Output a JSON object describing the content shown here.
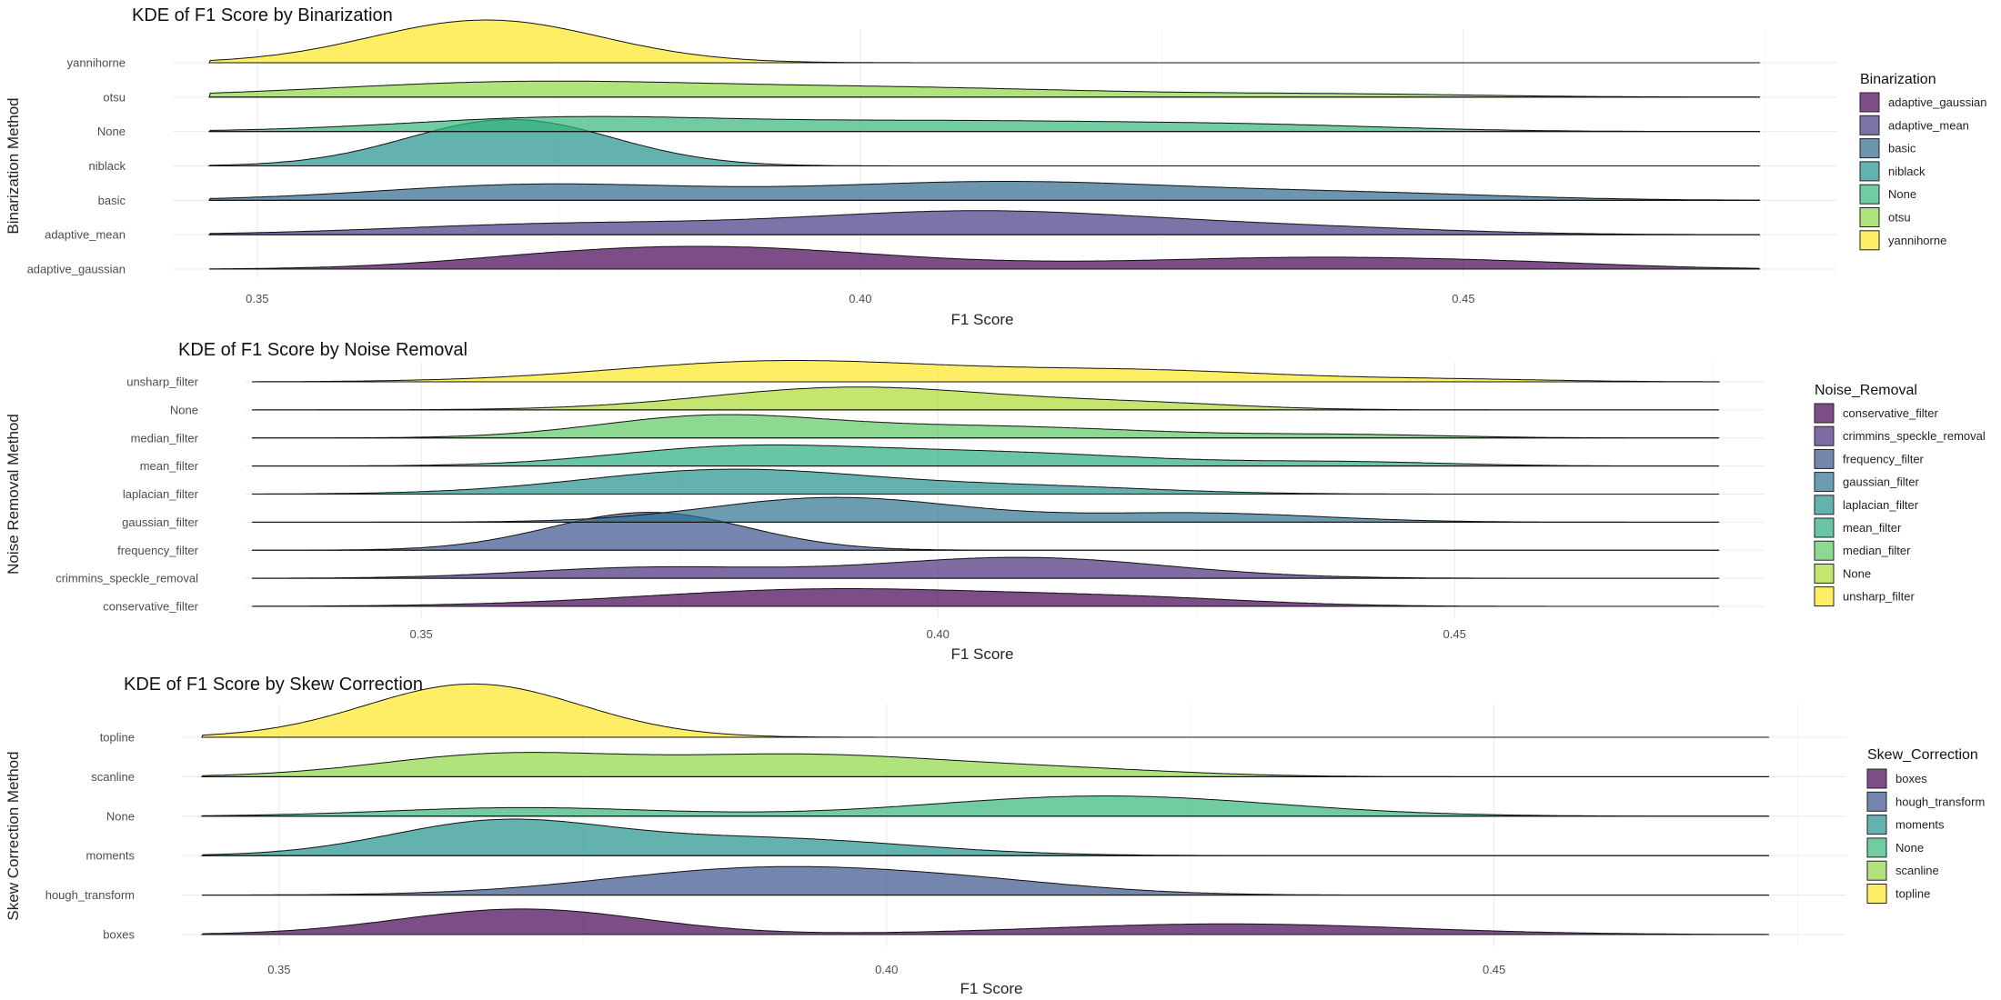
{
  "chart_data": [
    {
      "type": "area",
      "subtype": "ridgeline-kde",
      "title": "KDE of F1 Score by Binarization",
      "xlabel": "F1 Score",
      "ylabel": "Binarization Method",
      "xlim": [
        0.343,
        0.481
      ],
      "x_ticks": [
        "0.35",
        "0.40",
        "0.45"
      ],
      "grid": true,
      "legend": {
        "title": "Binarization",
        "position": "right"
      },
      "categories": [
        "adaptive_gaussian",
        "adaptive_mean",
        "basic",
        "niblack",
        "None",
        "otsu",
        "yannihorne"
      ],
      "colors": [
        "#440154",
        "#443983",
        "#31688e",
        "#21918c",
        "#35b779",
        "#90d743",
        "#fde725"
      ],
      "series": [
        {
          "name": "adaptive_gaussian",
          "peaks": [
            [
              0.377,
              0.011,
              0.28
            ],
            [
              0.392,
              0.011,
              0.32
            ],
            [
              0.412,
              0.013,
              0.1
            ],
            [
              0.437,
              0.012,
              0.22
            ],
            [
              0.455,
              0.01,
              0.1
            ]
          ]
        },
        {
          "name": "adaptive_mean",
          "peaks": [
            [
              0.375,
              0.014,
              0.22
            ],
            [
              0.41,
              0.015,
              0.5
            ],
            [
              0.438,
              0.012,
              0.12
            ]
          ]
        },
        {
          "name": "basic",
          "peaks": [
            [
              0.373,
              0.013,
              0.33
            ],
            [
              0.412,
              0.016,
              0.4
            ],
            [
              0.443,
              0.012,
              0.12
            ]
          ]
        },
        {
          "name": "niblack",
          "peaks": [
            [
              0.371,
              0.0085,
              1.0
            ]
          ]
        },
        {
          "name": "None",
          "peaks": [
            [
              0.375,
              0.013,
              0.28
            ],
            [
              0.407,
              0.017,
              0.22
            ],
            [
              0.434,
              0.012,
              0.1
            ]
          ]
        },
        {
          "name": "otsu",
          "peaks": [
            [
              0.372,
              0.016,
              0.32
            ],
            [
              0.405,
              0.016,
              0.18
            ],
            [
              0.44,
              0.012,
              0.06
            ]
          ]
        },
        {
          "name": "yannihorne",
          "peaks": [
            [
              0.369,
              0.0095,
              0.92
            ]
          ]
        }
      ]
    },
    {
      "type": "area",
      "subtype": "ridgeline-kde",
      "title": "KDE of F1 Score by Noise Removal",
      "xlabel": "F1 Score",
      "ylabel": "Noise Removal Method",
      "xlim": [
        0.333,
        0.48
      ],
      "x_ticks": [
        "0.35",
        "0.40",
        "0.45"
      ],
      "grid": true,
      "legend": {
        "title": "Noise_Removal",
        "position": "right"
      },
      "categories": [
        "conservative_filter",
        "crimmins_speckle_removal",
        "frequency_filter",
        "gaussian_filter",
        "laplacian_filter",
        "mean_filter",
        "median_filter",
        "None",
        "unsharp_filter"
      ],
      "colors": [
        "#440154",
        "#472d7b",
        "#3b528b",
        "#2c728e",
        "#21918c",
        "#28ae80",
        "#5ec962",
        "#addc30",
        "#fde725"
      ],
      "series": [
        {
          "name": "conservative_filter",
          "peaks": [
            [
              0.39,
              0.018,
              0.46
            ],
            [
              0.42,
              0.012,
              0.16
            ]
          ]
        },
        {
          "name": "crimmins_speckle_removal",
          "peaks": [
            [
              0.372,
              0.012,
              0.28
            ],
            [
              0.408,
              0.014,
              0.55
            ]
          ]
        },
        {
          "name": "frequency_filter",
          "peaks": [
            [
              0.372,
              0.0095,
              1.0
            ]
          ]
        },
        {
          "name": "gaussian_filter",
          "peaks": [
            [
              0.39,
              0.012,
              0.65
            ],
            [
              0.425,
              0.012,
              0.24
            ]
          ]
        },
        {
          "name": "laplacian_filter",
          "peaks": [
            [
              0.38,
              0.014,
              0.65
            ],
            [
              0.41,
              0.012,
              0.18
            ]
          ]
        },
        {
          "name": "mean_filter",
          "peaks": [
            [
              0.38,
              0.012,
              0.45
            ],
            [
              0.405,
              0.015,
              0.35
            ],
            [
              0.44,
              0.01,
              0.1
            ]
          ]
        },
        {
          "name": "median_filter",
          "peaks": [
            [
              0.378,
              0.011,
              0.55
            ],
            [
              0.405,
              0.015,
              0.3
            ],
            [
              0.44,
              0.01,
              0.08
            ]
          ]
        },
        {
          "name": "None",
          "peaks": [
            [
              0.392,
              0.014,
              0.6
            ],
            [
              0.42,
              0.01,
              0.15
            ]
          ]
        },
        {
          "name": "unsharp_filter",
          "peaks": [
            [
              0.385,
              0.016,
              0.55
            ],
            [
              0.42,
              0.014,
              0.28
            ],
            [
              0.45,
              0.01,
              0.06
            ]
          ]
        }
      ]
    },
    {
      "type": "area",
      "subtype": "ridgeline-kde",
      "title": "KDE of F1 Score by Skew Correction",
      "xlabel": "F1 Score",
      "ylabel": "Skew Correction Method",
      "xlim": [
        0.342,
        0.479
      ],
      "x_ticks": [
        "0.35",
        "0.40",
        "0.45"
      ],
      "grid": true,
      "legend": {
        "title": "Skew_Correction",
        "position": "right"
      },
      "categories": [
        "boxes",
        "hough_transform",
        "moments",
        "None",
        "scanline",
        "topline"
      ],
      "colors": [
        "#440154",
        "#3b528b",
        "#21918c",
        "#35b779",
        "#8fd744",
        "#fde725"
      ],
      "series": [
        {
          "name": "boxes",
          "peaks": [
            [
              0.37,
              0.01,
              0.48
            ],
            [
              0.428,
              0.015,
              0.2
            ]
          ]
        },
        {
          "name": "hough_transform",
          "peaks": [
            [
              0.39,
              0.013,
              0.5
            ],
            [
              0.408,
              0.01,
              0.15
            ]
          ]
        },
        {
          "name": "moments",
          "peaks": [
            [
              0.368,
              0.009,
              0.62
            ],
            [
              0.39,
              0.012,
              0.32
            ]
          ]
        },
        {
          "name": "None",
          "peaks": [
            [
              0.37,
              0.011,
              0.16
            ],
            [
              0.418,
              0.014,
              0.38
            ]
          ]
        },
        {
          "name": "scanline",
          "peaks": [
            [
              0.368,
              0.01,
              0.4
            ],
            [
              0.393,
              0.012,
              0.4
            ],
            [
              0.415,
              0.01,
              0.12
            ]
          ]
        },
        {
          "name": "topline",
          "peaks": [
            [
              0.366,
              0.0088,
              1.0
            ]
          ]
        }
      ]
    }
  ]
}
